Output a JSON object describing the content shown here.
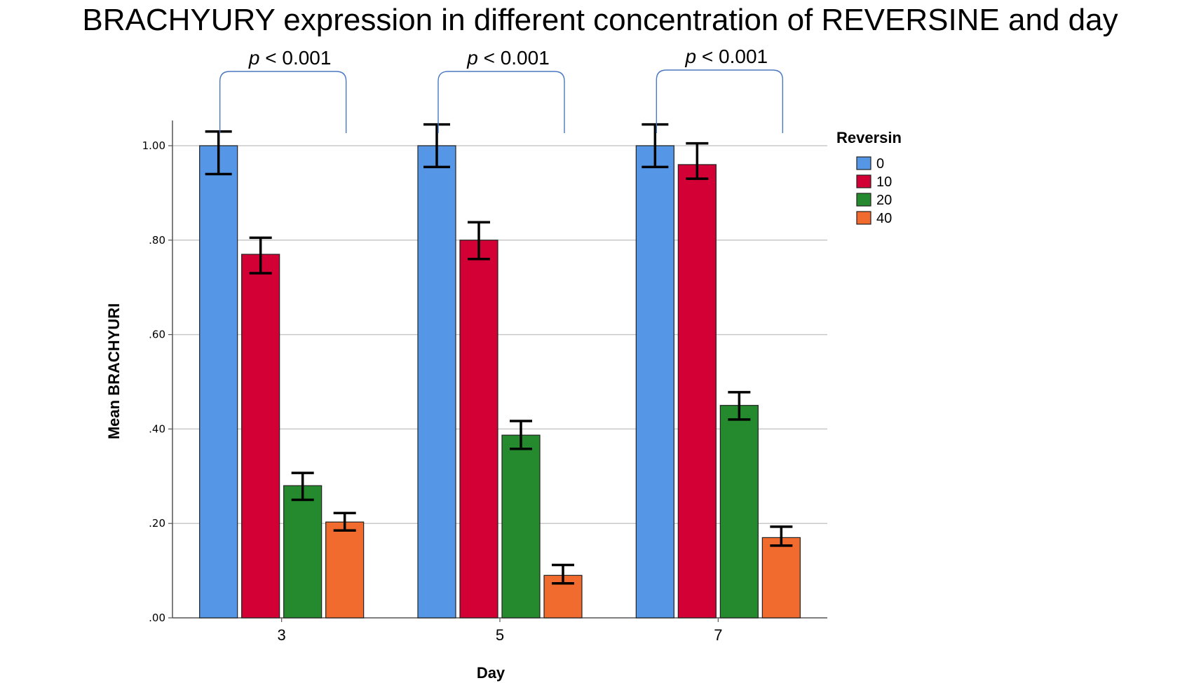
{
  "chart_data": {
    "type": "bar",
    "title": "BRACHYURY expression in different concentration of REVERSINE and day",
    "xlabel": "Day",
    "ylabel": "Mean BRACHYURI",
    "categories": [
      "3",
      "5",
      "7"
    ],
    "ylim": [
      0,
      1.0
    ],
    "yticks": [
      ".00",
      ".20",
      ".40",
      ".60",
      ".80",
      "1.00"
    ],
    "ytick_values": [
      0,
      0.2,
      0.4,
      0.6,
      0.8,
      1.0
    ],
    "grid": true,
    "legend": {
      "title": "Reversin",
      "position": "right"
    },
    "series": [
      {
        "name": "0",
        "color": "#5596e6",
        "values": [
          1.0,
          1.0,
          1.0
        ],
        "error_low": [
          0.94,
          0.955,
          0.955
        ],
        "error_high": [
          1.03,
          1.045,
          1.045
        ]
      },
      {
        "name": "10",
        "color": "#d30035",
        "values": [
          0.77,
          0.8,
          0.96
        ],
        "error_low": [
          0.73,
          0.76,
          0.93
        ],
        "error_high": [
          0.805,
          0.838,
          1.005
        ]
      },
      {
        "name": "20",
        "color": "#248a2d",
        "values": [
          0.28,
          0.387,
          0.45
        ],
        "error_low": [
          0.25,
          0.358,
          0.42
        ],
        "error_high": [
          0.307,
          0.417,
          0.478
        ]
      },
      {
        "name": "40",
        "color": "#f26b2e",
        "values": [
          0.203,
          0.09,
          0.17
        ],
        "error_low": [
          0.185,
          0.073,
          0.153
        ],
        "error_high": [
          0.222,
          0.112,
          0.193
        ]
      }
    ],
    "annotations": [
      {
        "text_prefix": "p",
        "text": "< 0.001",
        "category": "3"
      },
      {
        "text_prefix": "p",
        "text": "< 0.001",
        "category": "5"
      },
      {
        "text_prefix": "p",
        "text": "< 0.001",
        "category": "7"
      }
    ],
    "annotation_color": "#4a78c2"
  }
}
